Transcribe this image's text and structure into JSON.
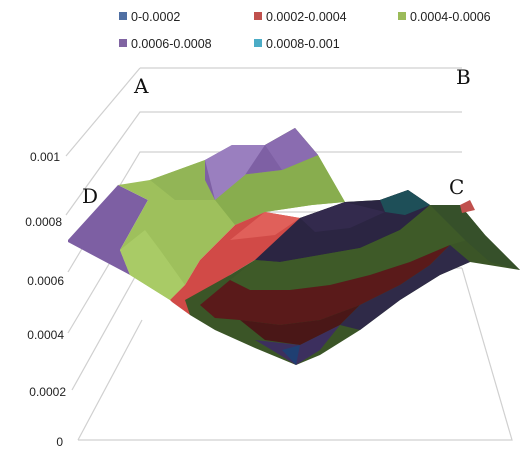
{
  "chart_data": {
    "type": "surface",
    "zlim": [
      0,
      0.001
    ],
    "z_ticks": [
      "0",
      "0.0002",
      "0.0004",
      "0.0006",
      "0.0008",
      "0.001"
    ],
    "legend": [
      {
        "label": "0-0.0002",
        "color": "#4f6fa3"
      },
      {
        "label": "0.0002-0.0004",
        "color": "#c0504d"
      },
      {
        "label": "0.0004-0.0006",
        "color": "#9bbb59"
      },
      {
        "label": "0.0006-0.0008",
        "color": "#8064a2"
      },
      {
        "label": "0.0008-0.001",
        "color": "#4bacc6"
      }
    ],
    "corner_labels": [
      "A",
      "B",
      "C",
      "D"
    ]
  }
}
